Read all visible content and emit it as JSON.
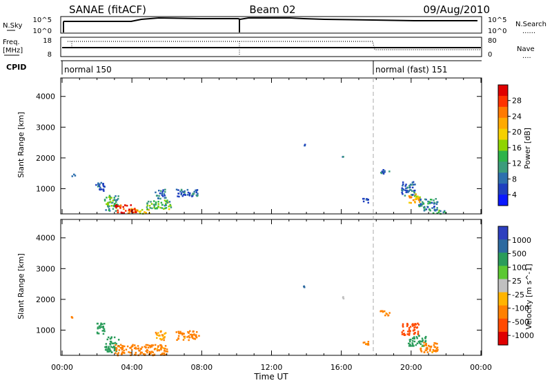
{
  "header": {
    "title_left": "SANAE (fitACF)",
    "title_center": "Beam 02",
    "title_right": "09/Aug/2010"
  },
  "colors": {
    "dashed_line": "#aaaaaa",
    "frame": "#000000"
  },
  "strips": {
    "nsky": {
      "label": "N.Sky",
      "left_ticks": [
        "10^5",
        "10^0"
      ],
      "right_ticks": [
        "10^5",
        "10^0"
      ],
      "right_label": "N.Search",
      "right_legend": "......"
    },
    "freq": {
      "label_line1": "Freq.",
      "label_line2": "[MHz]",
      "left_ticks": [
        "18",
        "8"
      ],
      "right_ticks": [
        "80",
        "0"
      ],
      "right_label": "Nave",
      "right_legend": "...."
    },
    "cpid": {
      "label": "CPID",
      "segments": [
        {
          "text": "normal 150",
          "start_hour": 0
        },
        {
          "text": "normal (fast) 151",
          "start_hour": 18
        }
      ]
    }
  },
  "axes": {
    "x_label": "Time UT",
    "x_ticks": [
      "00:00",
      "04:00",
      "08:00",
      "12:00",
      "16:00",
      "20:00",
      "00:00"
    ],
    "y_label": "Slant Range [km]",
    "y_ticks": [
      "1000",
      "2000",
      "3000",
      "4000"
    ]
  },
  "colorbars": {
    "power": {
      "label": "Power [dB]",
      "ticks": [
        "28",
        "24",
        "20",
        "16",
        "12",
        "8",
        "4"
      ],
      "colors": [
        "#e00000",
        "#ff3300",
        "#ff7a00",
        "#ffaa00",
        "#f5d000",
        "#8fd400",
        "#2db34a",
        "#3c9c7c",
        "#2d6fae",
        "#1f3fbf",
        "#0a18ff"
      ]
    },
    "velocity": {
      "label": "Velocity [m s^-1]",
      "ticks": [
        "1000",
        "500",
        "100",
        "25",
        "-25",
        "-100",
        "-500",
        "-1000"
      ],
      "colors": [
        "#2d3fbf",
        "#2d6aa0",
        "#2a9c5a",
        "#5cc832",
        "#c0c0c0",
        "#ffb400",
        "#ff8000",
        "#ff4a00",
        "#e00000"
      ]
    }
  },
  "chart_data": [
    {
      "type": "heatmap",
      "title": "Power",
      "xlabel": "Time UT",
      "ylabel": "Slant Range [km]",
      "colorbar_label": "Power [dB]",
      "xlim": [
        0,
        24
      ],
      "ylim": [
        180,
        4600
      ],
      "x_unit": "hours UT",
      "clusters": [
        {
          "x": [
            0.5,
            0.7
          ],
          "y": [
            1420,
            1520
          ],
          "value": 4
        },
        {
          "x": [
            1.9,
            2.4
          ],
          "y": [
            900,
            1250
          ],
          "value": 4
        },
        {
          "x": [
            2.4,
            3.2
          ],
          "y": [
            300,
            800
          ],
          "value": 10
        },
        {
          "x": [
            3.0,
            4.2
          ],
          "y": [
            200,
            500
          ],
          "value": 27
        },
        {
          "x": [
            4.2,
            5.0
          ],
          "y": [
            200,
            350
          ],
          "value": 20
        },
        {
          "x": [
            4.8,
            6.2
          ],
          "y": [
            350,
            650
          ],
          "value": 12
        },
        {
          "x": [
            5.3,
            5.9
          ],
          "y": [
            700,
            1000
          ],
          "value": 5
        },
        {
          "x": [
            6.5,
            7.8
          ],
          "y": [
            750,
            1000
          ],
          "value": 5
        },
        {
          "x": [
            13.8,
            13.9
          ],
          "y": [
            2400,
            2470
          ],
          "value": 4
        },
        {
          "x": [
            16.0,
            16.1
          ],
          "y": [
            2050,
            2110
          ],
          "value": 4
        },
        {
          "x": [
            17.2,
            17.6
          ],
          "y": [
            550,
            700
          ],
          "value": 4
        },
        {
          "x": [
            18.2,
            18.8
          ],
          "y": [
            1500,
            1650
          ],
          "value": 4
        },
        {
          "x": [
            19.4,
            20.2
          ],
          "y": [
            800,
            1250
          ],
          "value": 5
        },
        {
          "x": [
            19.8,
            20.5
          ],
          "y": [
            550,
            850
          ],
          "value": 20
        },
        {
          "x": [
            20.4,
            21.5
          ],
          "y": [
            300,
            700
          ],
          "value": 8
        },
        {
          "x": [
            21.2,
            22.0
          ],
          "y": [
            200,
            320
          ],
          "value": 10
        }
      ]
    },
    {
      "type": "heatmap",
      "title": "Velocity",
      "xlabel": "Time UT",
      "ylabel": "Slant Range [km]",
      "colorbar_label": "Velocity [m s^-1]",
      "xlim": [
        0,
        24
      ],
      "ylim": [
        180,
        4600
      ],
      "x_unit": "hours UT",
      "clusters": [
        {
          "x": [
            0.5,
            0.7
          ],
          "y": [
            1420,
            1520
          ],
          "value": -100
        },
        {
          "x": [
            1.9,
            2.4
          ],
          "y": [
            900,
            1250
          ],
          "value": 100
        },
        {
          "x": [
            2.4,
            3.2
          ],
          "y": [
            300,
            800
          ],
          "value": 100
        },
        {
          "x": [
            3.0,
            6.0
          ],
          "y": [
            200,
            550
          ],
          "value": -100
        },
        {
          "x": [
            5.3,
            5.9
          ],
          "y": [
            700,
            1000
          ],
          "value": -50
        },
        {
          "x": [
            6.5,
            7.8
          ],
          "y": [
            700,
            1000
          ],
          "value": -100
        },
        {
          "x": [
            13.8,
            13.9
          ],
          "y": [
            2400,
            2470
          ],
          "value": 500
        },
        {
          "x": [
            16.0,
            16.1
          ],
          "y": [
            2050,
            2110
          ],
          "value": 0
        },
        {
          "x": [
            17.2,
            17.6
          ],
          "y": [
            550,
            700
          ],
          "value": -100
        },
        {
          "x": [
            18.2,
            18.8
          ],
          "y": [
            1500,
            1650
          ],
          "value": -100
        },
        {
          "x": [
            19.4,
            20.4
          ],
          "y": [
            850,
            1250
          ],
          "value": -500
        },
        {
          "x": [
            19.8,
            20.8
          ],
          "y": [
            500,
            850
          ],
          "value": 100
        },
        {
          "x": [
            20.4,
            21.5
          ],
          "y": [
            300,
            650
          ],
          "value": -100
        }
      ]
    }
  ]
}
